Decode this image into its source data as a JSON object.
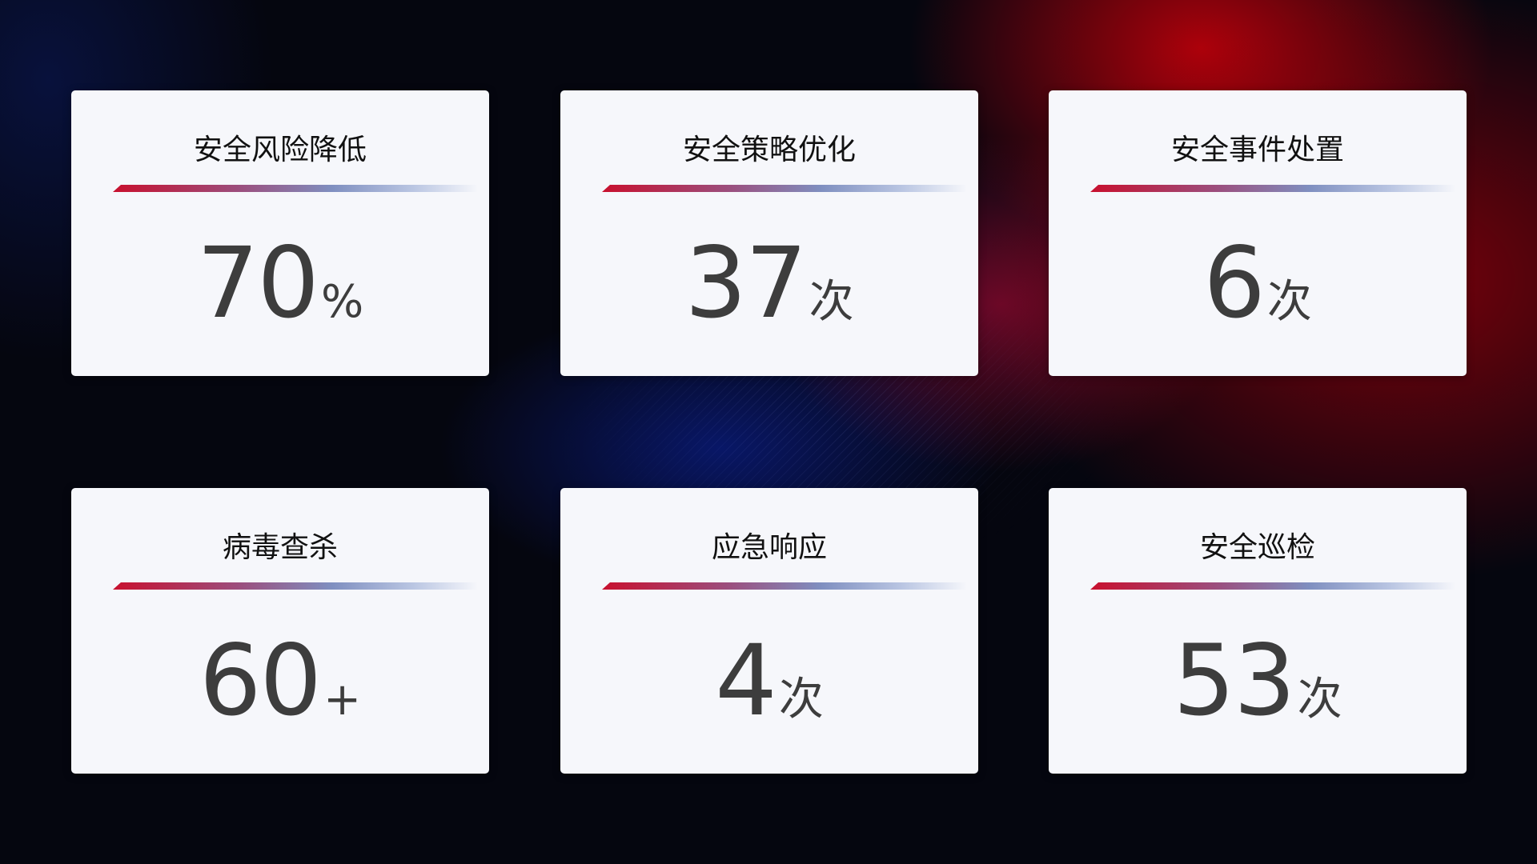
{
  "cards": [
    {
      "title": "安全风险降低",
      "value": "70",
      "unit": "%"
    },
    {
      "title": "安全策略优化",
      "value": "37",
      "unit": "次"
    },
    {
      "title": "安全事件处置",
      "value": "6",
      "unit": "次"
    },
    {
      "title": "病毒查杀",
      "value": "60",
      "unit": "+"
    },
    {
      "title": "应急响应",
      "value": "4",
      "unit": "次"
    },
    {
      "title": "安全巡检",
      "value": "53",
      "unit": "次"
    }
  ],
  "colors": {
    "accent_red": "#c8102e",
    "accent_blue": "#7f8fc0",
    "card_bg": "#f6f7fb",
    "value_text": "#3d3d3d"
  }
}
